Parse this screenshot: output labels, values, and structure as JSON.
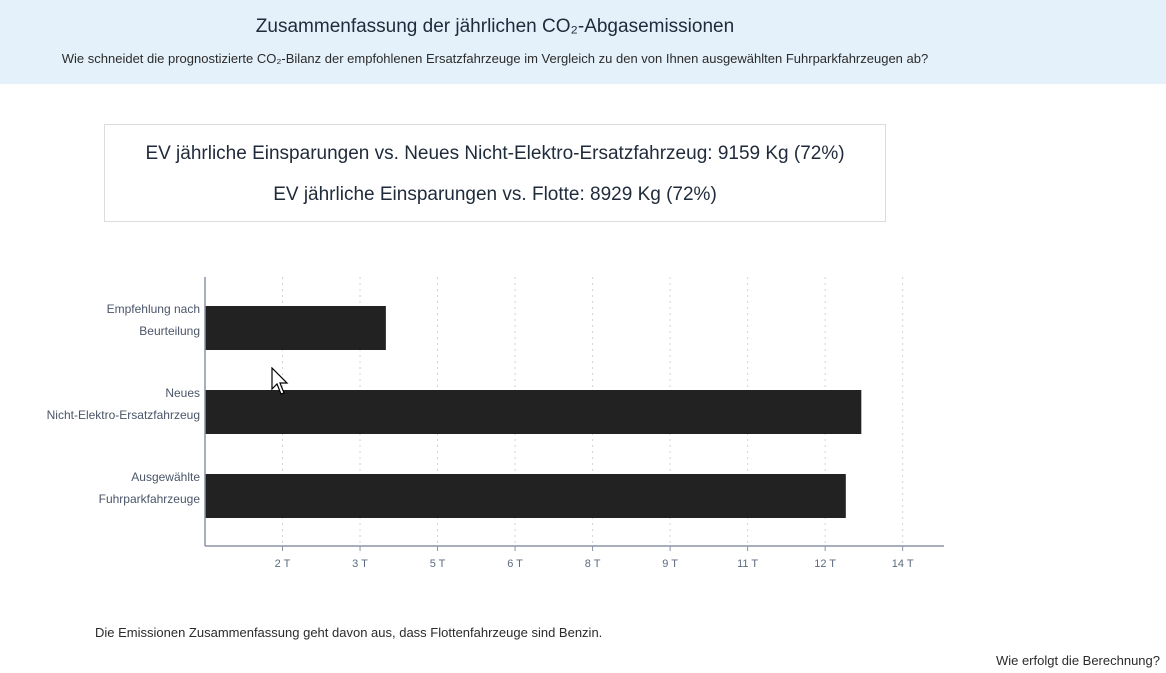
{
  "header": {
    "title": "Zusammenfassung der jährlichen CO₂-Abgasemissionen",
    "subtitle": "Wie schneidet die prognostizierte CO₂-Bilanz der empfohlenen Ersatzfahrzeuge im Vergleich zu den von Ihnen ausgewählten Fuhrparkfahrzeugen ab?"
  },
  "savings": {
    "line1": "EV jährliche Einsparungen vs. Neues Nicht-Elektro-Ersatzfahrzeug: 9159 Kg (72%)",
    "line2": "EV jährliche Einsparungen vs. Flotte: 8929 Kg (72%)"
  },
  "chart_data": {
    "type": "bar",
    "orientation": "horizontal",
    "categories": [
      [
        "Empfehlung nach",
        "Beurteilung"
      ],
      [
        "Neues",
        "Nicht-Elektro-Ersatzfahrzeug"
      ],
      [
        "Ausgewählte",
        "Fuhrparkfahrzeuge"
      ]
    ],
    "values": [
      3.5,
      12.7,
      12.4
    ],
    "xlim": [
      0,
      14.3
    ],
    "xticks": [
      1.5,
      3.0,
      4.5,
      6.0,
      7.5,
      9.0,
      10.5,
      12.0,
      13.5
    ],
    "xtick_labels": [
      "2 T",
      "3 T",
      "5 T",
      "6 T",
      "8 T",
      "9 T",
      "11 T",
      "12 T",
      "14 T"
    ],
    "grid": "vertical dotted",
    "bar_color": "#222222",
    "axis_color": "#8a94a6"
  },
  "footer": {
    "note": "Die Emissionen Zusammenfassung geht davon aus, dass Flottenfahrzeuge sind Benzin.",
    "help_link": "Wie erfolgt die Berechnung?"
  }
}
